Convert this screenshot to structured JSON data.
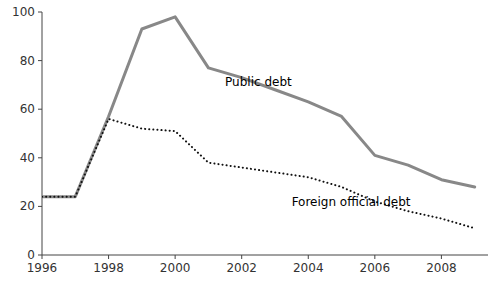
{
  "chart_data": {
    "type": "line",
    "x": [
      1996,
      1997,
      1998,
      1999,
      2000,
      2001,
      2002,
      2003,
      2004,
      2005,
      2006,
      2007,
      2008,
      2009
    ],
    "series": [
      {
        "color": "#888888",
        "line_style": "solid",
        "values": [
          24,
          24,
          57,
          93,
          98,
          77,
          73,
          68,
          63,
          57,
          41,
          37,
          31,
          28
        ]
      },
      {
        "color": "#111111",
        "line_style": "dotted",
        "values": [
          24,
          24,
          56,
          52,
          51,
          38,
          36,
          34,
          32,
          28,
          22,
          18,
          15,
          11
        ]
      }
    ],
    "annotations": [
      {
        "text": "Public debt",
        "x": 2001.5,
        "y": 71
      },
      {
        "text": "Foreign official debt",
        "x": 2003.5,
        "y": 22
      }
    ],
    "xlim": [
      1996,
      2009.4
    ],
    "ylim": [
      0,
      100
    ],
    "xticks": [
      1996,
      1998,
      2000,
      2002,
      2004,
      2006,
      2008
    ],
    "yticks": [
      0,
      20,
      40,
      60,
      80,
      100
    ],
    "grid": false
  }
}
